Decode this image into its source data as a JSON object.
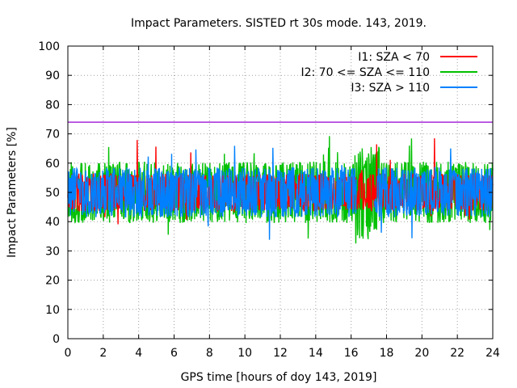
{
  "chart_data": {
    "type": "line",
    "title": "Impact Parameters. SISTED rt 30s mode. 143, 2019.",
    "xlabel": "GPS time [hours of doy 143, 2019]",
    "ylabel": "Impact Parameters [%]",
    "xlim": [
      0,
      24
    ],
    "ylim": [
      0,
      100
    ],
    "xticks": [
      0,
      2,
      4,
      6,
      8,
      10,
      12,
      14,
      16,
      18,
      20,
      22,
      24
    ],
    "yticks": [
      0,
      10,
      20,
      30,
      40,
      50,
      60,
      70,
      80,
      90,
      100
    ],
    "grid": true,
    "legend_position": "top-right",
    "threshold": {
      "value": 74,
      "color": "#9400d3"
    },
    "series": [
      {
        "name": "I1: SZA < 70",
        "color": "#ff0000",
        "mean": 50,
        "x_start": 0.0,
        "x_end": 24.0,
        "typical_range": [
          44,
          57
        ],
        "max": 69,
        "min": 38
      },
      {
        "name": "I2: 70 <= SZA <= 110",
        "color": "#00c000",
        "mean": 50,
        "x_start": 0.0,
        "x_end": 24.0,
        "typical_range": [
          40,
          61
        ],
        "max": 71,
        "min": 31
      },
      {
        "name": "I3: SZA > 110",
        "color": "#0080ff",
        "mean": 50,
        "x_start": 0.0,
        "x_end": 24.0,
        "typical_range": [
          42,
          59
        ],
        "max": 66,
        "min": 31,
        "gap": [
          16.3,
          17.3
        ]
      }
    ]
  }
}
